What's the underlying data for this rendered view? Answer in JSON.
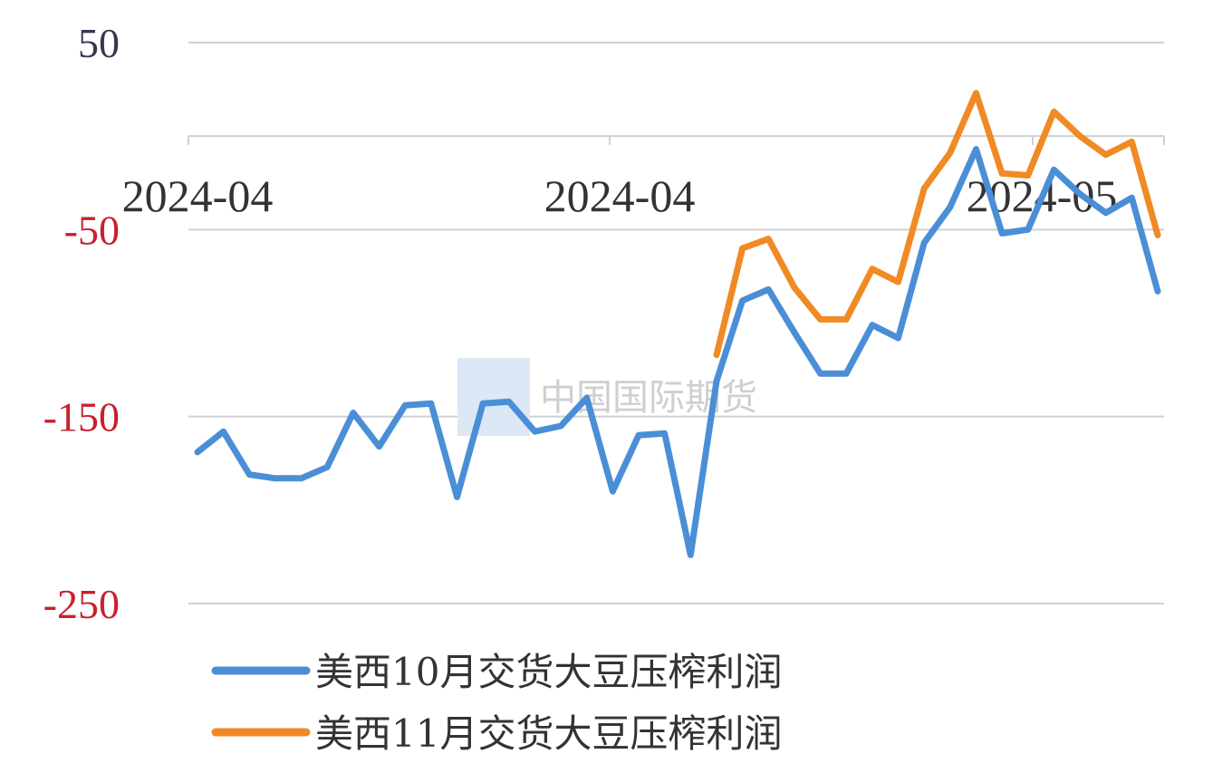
{
  "chart_data": {
    "type": "line",
    "title": "",
    "xlabel": "",
    "ylabel": "",
    "ylim": [
      -250,
      50
    ],
    "yticks": [
      50,
      -50,
      -150,
      -250
    ],
    "ytick_colors": [
      "#3b3550",
      "#c8202c",
      "#c8202c",
      "#c8202c"
    ],
    "xtick_labels": [
      "2024-04",
      "2024-04",
      "2024-05"
    ],
    "grid": true,
    "legend_position": "bottom",
    "watermark": "中国国际期货",
    "series": [
      {
        "name": "美西10月交货大豆压榨利润",
        "color": "#4a8fd6",
        "values": [
          -169,
          -158,
          -181,
          -183,
          -183,
          -177,
          -148,
          -166,
          -144,
          -143,
          -193,
          -143,
          -142,
          -158,
          -155,
          -140,
          -190,
          -160,
          -159,
          -224,
          -131,
          -88,
          -82,
          -105,
          -127,
          -127,
          -101,
          -108,
          -57,
          -38,
          -7,
          -52,
          -50,
          -18,
          -31,
          -41,
          -33,
          -83
        ]
      },
      {
        "name": "美西11月交货大豆压榨利润",
        "color": "#f08a24",
        "values": [
          null,
          null,
          null,
          null,
          null,
          null,
          null,
          null,
          null,
          null,
          null,
          null,
          null,
          null,
          null,
          null,
          null,
          null,
          null,
          null,
          -117,
          -60,
          -55,
          -81,
          -98,
          -98,
          -71,
          -78,
          -28,
          -9,
          23,
          -20,
          -21,
          13,
          0,
          -10,
          -3,
          -53
        ]
      }
    ]
  }
}
